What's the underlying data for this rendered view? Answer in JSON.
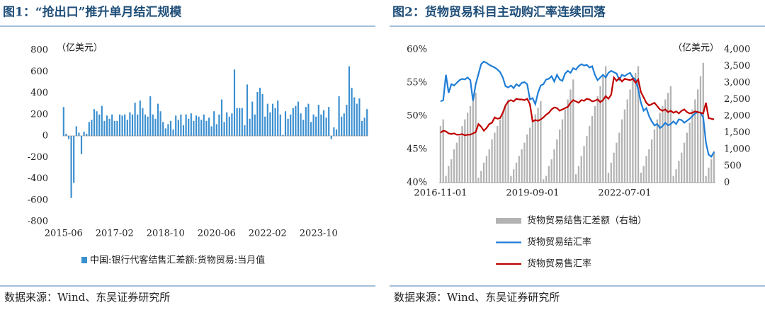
{
  "chart_data": [
    {
      "type": "bar",
      "title": "图1：“抢出口”推升单月结汇规模",
      "unit": "（亿美元）",
      "source": "数据来源：Wind、东吴证券研究所",
      "categories": [
        "2015-06",
        null,
        null,
        null,
        null,
        null,
        null,
        null,
        null,
        null,
        null,
        null,
        null,
        null,
        null,
        null,
        null,
        null,
        null,
        null,
        "2017-02",
        null,
        null,
        null,
        null,
        null,
        null,
        null,
        null,
        null,
        null,
        null,
        null,
        null,
        null,
        null,
        null,
        null,
        null,
        null,
        "2018-10",
        null,
        null,
        null,
        null,
        null,
        null,
        null,
        null,
        null,
        null,
        null,
        null,
        null,
        null,
        null,
        null,
        null,
        null,
        null,
        "2020-06",
        null,
        null,
        null,
        null,
        null,
        null,
        null,
        null,
        null,
        null,
        null,
        null,
        null,
        null,
        null,
        null,
        null,
        null,
        null,
        "2022-02",
        null,
        null,
        null,
        null,
        null,
        null,
        null,
        null,
        null,
        null,
        null,
        null,
        null,
        null,
        null,
        null,
        null,
        null,
        null,
        "2023-10",
        null,
        null,
        null,
        null,
        null,
        null,
        null,
        null,
        null,
        null,
        null,
        null,
        null,
        null,
        null,
        null,
        null,
        null,
        null
      ],
      "series": [
        {
          "name": "中国:银行代客结售汇差额:货物贸易:当月值",
          "color": "#3a8fd0",
          "values": [
            270,
            20,
            -30,
            -580,
            -440,
            90,
            30,
            -170,
            40,
            20,
            130,
            150,
            250,
            230,
            200,
            280,
            140,
            190,
            160,
            200,
            140,
            140,
            200,
            190,
            200,
            150,
            220,
            200,
            310,
            200,
            330,
            260,
            200,
            180,
            370,
            200,
            160,
            300,
            230,
            130,
            70,
            110,
            140,
            60,
            190,
            150,
            200,
            100,
            200,
            160,
            210,
            140,
            190,
            180,
            150,
            200,
            140,
            170,
            90,
            230,
            110,
            200,
            340,
            130,
            220,
            180,
            210,
            620,
            260,
            260,
            260,
            100,
            480,
            160,
            320,
            200,
            410,
            450,
            390,
            180,
            300,
            220,
            300,
            260,
            330,
            200,
            10,
            230,
            160,
            200,
            260,
            280,
            320,
            210,
            150,
            270,
            300,
            130,
            200,
            180,
            290,
            200,
            240,
            170,
            270,
            -30,
            80,
            60,
            370,
            180,
            210,
            290,
            650,
            450,
            360,
            300,
            350,
            140,
            170,
            250
          ]
        }
      ],
      "ylim": [
        -800,
        800
      ],
      "yticks": [
        -800,
        -600,
        -400,
        -200,
        0,
        200,
        400,
        600,
        800
      ]
    },
    {
      "type": "bar-line",
      "title": "图2：货物贸易科目主动购汇率连续回落",
      "unit": "（亿美元）",
      "source": "数据来源：Wind、东吴证券研究所",
      "categories": [
        "2016-11-01",
        null,
        null,
        null,
        null,
        null,
        null,
        null,
        null,
        null,
        null,
        null,
        null,
        null,
        null,
        null,
        null,
        null,
        null,
        null,
        null,
        null,
        null,
        null,
        null,
        null,
        null,
        null,
        null,
        null,
        null,
        null,
        null,
        null,
        "2019-09-01",
        null,
        null,
        null,
        null,
        null,
        null,
        null,
        null,
        null,
        null,
        null,
        null,
        null,
        null,
        null,
        null,
        null,
        null,
        null,
        null,
        null,
        null,
        null,
        null,
        null,
        null,
        null,
        null,
        null,
        null,
        null,
        null,
        null,
        "2022-07-01",
        null,
        null,
        null,
        null,
        null,
        null,
        null,
        null,
        null,
        null,
        null,
        null,
        null,
        null,
        null,
        null,
        null,
        null,
        null,
        null,
        null,
        null,
        null,
        null,
        null,
        null,
        null,
        null,
        null,
        null,
        null,
        null,
        null
      ],
      "series": [
        {
          "name": "货物贸易结售汇差额（右轴）",
          "type": "bar",
          "axis": "y2",
          "color": "#b3b3b3",
          "values": [
            1700,
            1900,
            200,
            500,
            700,
            1000,
            1200,
            1400,
            1700,
            1900,
            2100,
            2300,
            2500,
            2700,
            150,
            350,
            600,
            800,
            1000,
            1300,
            1500,
            1700,
            1900,
            2100,
            2300,
            2500,
            200,
            400,
            600,
            800,
            1000,
            1200,
            1450,
            1650,
            1850,
            2050,
            2250,
            2450,
            100,
            200,
            500,
            700,
            1000,
            1300,
            1600,
            1900,
            2200,
            2500,
            2800,
            3100,
            250,
            500,
            800,
            1100,
            1400,
            1700,
            2000,
            2300,
            2600,
            2900,
            3200,
            3500,
            300,
            600,
            900,
            1200,
            1500,
            1900,
            2200,
            2500,
            2800,
            3100,
            3300,
            3500,
            300,
            500,
            800,
            1000,
            1300,
            1600,
            1900,
            2100,
            2300,
            2500,
            2700,
            2900,
            200,
            400,
            650,
            900,
            1200,
            1500,
            1800,
            2200,
            2500,
            2800,
            3200,
            3600,
            200,
            450,
            700,
            950
          ]
        },
        {
          "name": "货物贸易结汇率",
          "type": "line",
          "color": "#1f7ed6",
          "values": [
            52.2,
            52.4,
            56.2,
            53.5,
            54.8,
            54.6,
            55.0,
            55.4,
            55.6,
            55.5,
            55.8,
            55.4,
            52.3,
            54.8,
            56.3,
            57.8,
            58.2,
            58.0,
            57.7,
            57.5,
            57.3,
            57.0,
            56.6,
            55.8,
            54.5,
            54.3,
            54.6,
            54.2,
            54.8,
            54.5,
            55.0,
            55.1,
            54.8,
            52.5,
            52.7,
            51.8,
            53.5,
            54.6,
            54.8,
            55.5,
            55.6,
            56.0,
            55.2,
            56.2,
            55.5,
            55.3,
            56.4,
            56.8,
            56.5,
            57.2,
            57.0,
            57.5,
            57.8,
            57.6,
            57.7,
            57.3,
            57.5,
            56.2,
            55.4,
            55.8,
            56.2,
            55.8,
            56.5,
            56.8,
            56.6,
            56.4,
            55.5,
            56.2,
            56.0,
            56.3,
            56.5,
            55.8,
            55.5,
            54.0,
            52.0,
            50.8,
            51.2,
            50.0,
            49.2,
            48.6,
            48.8,
            48.2,
            48.5,
            49.0,
            48.6,
            48.8,
            49.2,
            48.8,
            49.5,
            49.4,
            49.0,
            49.3,
            49.6,
            50.0,
            50.4,
            50.6,
            50.5,
            49.8,
            46.0,
            44.2,
            43.9,
            44.6
          ]
        },
        {
          "name": "货物贸易售汇率",
          "type": "line",
          "color": "#c00000",
          "values": [
            47.5,
            47.8,
            47.7,
            47.4,
            47.3,
            47.4,
            47.2,
            47.2,
            47.3,
            47.1,
            47.2,
            47.2,
            47.4,
            47.6,
            48.8,
            48.4,
            47.8,
            48.2,
            48.8,
            49.0,
            49.8,
            49.6,
            49.7,
            50.5,
            51.6,
            52.2,
            52.4,
            52.2,
            52.6,
            52.5,
            52.5,
            52.4,
            52.6,
            51.8,
            49.2,
            49.4,
            49.3,
            49.5,
            49.8,
            50.2,
            50.5,
            51.0,
            51.3,
            51.2,
            50.8,
            51.0,
            51.2,
            51.4,
            52.0,
            52.4,
            52.2,
            52.0,
            52.4,
            52.3,
            52.6,
            52.5,
            52.2,
            52.3,
            52.5,
            52.1,
            52.4,
            53.0,
            52.6,
            53.2,
            55.8,
            55.3,
            55.7,
            55.2,
            55.6,
            55.5,
            55.4,
            55.6,
            55.0,
            55.5,
            53.6,
            52.8,
            52.0,
            51.6,
            51.8,
            52.0,
            51.5,
            51.0,
            50.8,
            51.0,
            50.6,
            50.8,
            50.5,
            50.7,
            50.4,
            50.8,
            51.0,
            50.6,
            50.4,
            50.5,
            50.7,
            50.6,
            50.5,
            50.4,
            52.0,
            49.7,
            49.6,
            49.5
          ]
        }
      ],
      "ylim": [
        40,
        60
      ],
      "yticks": [
        {
          "value": 40,
          "label": "40%"
        },
        {
          "value": 45,
          "label": "45%"
        },
        {
          "value": 50,
          "label": "50%"
        },
        {
          "value": 55,
          "label": "55%"
        },
        {
          "value": 60,
          "label": "60%"
        }
      ],
      "y2lim": [
        0,
        4000
      ],
      "y2ticks": [
        0,
        500,
        {
          "value": 1000,
          "label": "1,000"
        },
        {
          "value": 1500,
          "label": "1,500"
        },
        {
          "value": 2000,
          "label": "2,000"
        },
        {
          "value": 2500,
          "label": "2,500"
        },
        {
          "value": 3000,
          "label": "3,000"
        },
        {
          "value": 3500,
          "label": "3,500"
        },
        {
          "value": 4000,
          "label": "4,000"
        }
      ]
    }
  ]
}
